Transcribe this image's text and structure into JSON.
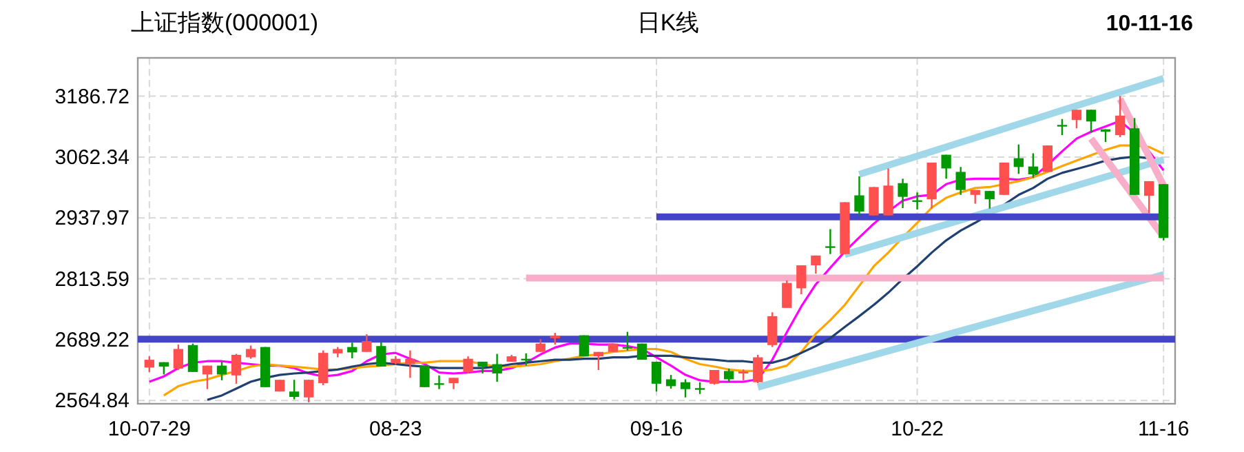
{
  "chart_data": {
    "type": "candlestick",
    "title": "上证指数(000001)",
    "subtitle": "日K线",
    "annotations": [
      "10-11-16"
    ],
    "categories": [
      "10-07-29",
      null,
      null,
      null,
      null,
      null,
      null,
      null,
      null,
      null,
      null,
      null,
      null,
      null,
      null,
      null,
      null,
      "08-23",
      null,
      null,
      null,
      null,
      null,
      null,
      null,
      null,
      null,
      null,
      null,
      null,
      null,
      null,
      null,
      null,
      null,
      "09-16",
      null,
      null,
      null,
      null,
      null,
      null,
      null,
      null,
      null,
      null,
      null,
      null,
      null,
      null,
      null,
      null,
      null,
      "10-22",
      null,
      null,
      null,
      null,
      null,
      null,
      null,
      null,
      null,
      null,
      null,
      null,
      null,
      null,
      null,
      null,
      "11-16"
    ],
    "ohlc": [
      [
        2632,
        2655,
        2623,
        2648
      ],
      [
        2643,
        2643,
        2618,
        2634
      ],
      [
        2630,
        2679,
        2627,
        2670
      ],
      [
        2678,
        2681,
        2623,
        2623
      ],
      [
        2618,
        2636,
        2588,
        2636
      ],
      [
        2636,
        2644,
        2606,
        2618
      ],
      [
        2616,
        2660,
        2599,
        2658
      ],
      [
        2653,
        2677,
        2650,
        2670
      ],
      [
        2674,
        2674,
        2592,
        2592
      ],
      [
        2583,
        2607,
        2583,
        2607
      ],
      [
        2583,
        2607,
        2567,
        2572
      ],
      [
        2571,
        2607,
        2561,
        2607
      ],
      [
        2600,
        2667,
        2596,
        2662
      ],
      [
        2661,
        2674,
        2653,
        2670
      ],
      [
        2674,
        2683,
        2651,
        2663
      ],
      [
        2664,
        2700,
        2664,
        2686
      ],
      [
        2676,
        2684,
        2634,
        2634
      ],
      [
        2641,
        2655,
        2638,
        2650
      ],
      [
        2639,
        2667,
        2611,
        2650
      ],
      [
        2636,
        2636,
        2592,
        2592
      ],
      [
        2600,
        2616,
        2588,
        2599
      ],
      [
        2600,
        2611,
        2588,
        2611
      ],
      [
        2623,
        2655,
        2620,
        2650
      ],
      [
        2644,
        2644,
        2620,
        2634
      ],
      [
        2639,
        2660,
        2603,
        2620
      ],
      [
        2644,
        2658,
        2644,
        2655
      ],
      [
        2650,
        2661,
        2636,
        2649
      ],
      [
        2664,
        2690,
        2664,
        2681
      ],
      [
        2692,
        2703,
        2679,
        2697
      ],
      null,
      [
        2698,
        2698,
        2655,
        2655
      ],
      [
        2655,
        2664,
        2627,
        2664
      ],
      [
        2664,
        2681,
        2664,
        2681
      ],
      [
        2674,
        2705,
        2667,
        2673
      ],
      [
        2681,
        2681,
        2648,
        2648
      ],
      [
        2644,
        2644,
        2583,
        2599
      ],
      [
        2608,
        2617,
        2589,
        2594
      ],
      [
        2602,
        2608,
        2571,
        2588
      ],
      [
        2590,
        2602,
        2578,
        2589
      ],
      [
        2599,
        2627,
        2597,
        2627
      ],
      [
        2625,
        2630,
        2603,
        2608
      ],
      [
        2620,
        2628,
        2606,
        2624
      ],
      [
        2602,
        2658,
        2600,
        2653
      ],
      [
        2678,
        2745,
        2674,
        2737
      ],
      [
        2754,
        2810,
        2754,
        2805
      ],
      [
        2794,
        2841,
        2782,
        2841
      ],
      [
        2841,
        2861,
        2824,
        2861
      ],
      [
        2880,
        2915,
        2864,
        2878
      ],
      [
        2864,
        2970,
        2864,
        2970
      ],
      [
        2984,
        3023,
        2943,
        2951
      ],
      [
        2943,
        3001,
        2943,
        3001
      ],
      [
        2943,
        3039,
        2943,
        3004
      ],
      [
        3009,
        3018,
        2958,
        2981
      ],
      [
        2974,
        2990,
        2955,
        2973
      ],
      [
        2976,
        3051,
        2957,
        3051
      ],
      [
        3067,
        3067,
        3018,
        3039
      ],
      [
        3032,
        3042,
        2985,
        2995
      ],
      [
        2985,
        2995,
        2967,
        2995
      ],
      [
        2993,
        2993,
        2957,
        2976
      ],
      [
        2985,
        3051,
        2985,
        3051
      ],
      [
        3060,
        3088,
        3028,
        3042
      ],
      [
        3043,
        3070,
        3020,
        3027
      ],
      [
        3032,
        3086,
        3032,
        3086
      ],
      [
        3128,
        3140,
        3107,
        3127
      ],
      [
        3138,
        3159,
        3121,
        3159
      ],
      [
        3159,
        3159,
        3112,
        3135
      ],
      [
        3119,
        3119,
        3093,
        3114
      ],
      [
        3107,
        3187,
        3103,
        3147
      ],
      [
        3121,
        3142,
        2985,
        2985
      ],
      [
        2983,
        3013,
        2948,
        3013
      ],
      [
        3007,
        3007,
        2892,
        2897
      ]
    ],
    "colors": [
      "#ff4f4f",
      "#009900",
      "#ff4f4f",
      "#009900",
      "#ff4f4f",
      "#009900",
      "#ff4f4f",
      "#ff4f4f",
      "#009900",
      "#ff4f4f",
      "#009900",
      "#ff4f4f",
      "#ff4f4f",
      "#ff4f4f",
      "#009900",
      "#ff4f4f",
      "#009900",
      "#ff4f4f",
      "#ff4f4f",
      "#009900",
      "#009900",
      "#ff4f4f",
      "#ff4f4f",
      "#009900",
      "#009900",
      "#ff4f4f",
      "#009900",
      "#ff4f4f",
      "#ff4f4f",
      null,
      "#009900",
      "#ff4f4f",
      "#ff4f4f",
      "#009900",
      "#009900",
      "#009900",
      "#009900",
      "#009900",
      "#009900",
      "#ff4f4f",
      "#009900",
      "#ff4f4f",
      "#ff4f4f",
      "#ff4f4f",
      "#ff4f4f",
      "#ff4f4f",
      "#ff4f4f",
      "#009900",
      "#ff4f4f",
      "#009900",
      "#ff4f4f",
      "#ff4f4f",
      "#009900",
      "#009900",
      "#ff4f4f",
      "#009900",
      "#009900",
      "#ff4f4f",
      "#009900",
      "#ff4f4f",
      "#009900",
      "#009900",
      "#ff4f4f",
      "#009900",
      "#ff4f4f",
      "#009900",
      "#009900",
      "#ff4f4f",
      "#009900",
      "#ff4f4f",
      "#009900"
    ],
    "series": [
      {
        "type": "line",
        "color": "#ff00ff",
        "values": [
          2603,
          2614,
          2631,
          2642,
          2645,
          2645,
          2642,
          2639,
          2636,
          2636,
          2631,
          2620,
          2614,
          2617,
          2625,
          2645,
          2659,
          2662,
          2650,
          2639,
          2622,
          2620,
          2622,
          2625,
          2625,
          2631,
          2642,
          2659,
          2673,
          2681,
          2681,
          2679,
          2679,
          2676,
          2670,
          2653,
          2636,
          2617,
          2606,
          2603,
          2603,
          2603,
          2608,
          2648,
          2704,
          2757,
          2802,
          2836,
          2869,
          2898,
          2926,
          2951,
          2973,
          2982,
          2985,
          3007,
          3016,
          3018,
          3018,
          3018,
          3016,
          3021,
          3046,
          3074,
          3100,
          3114,
          3125,
          3136,
          3111,
          3074,
          3035
        ]
      },
      {
        "type": "line",
        "color": "#ffa500",
        "values": [
          null,
          2575,
          2594,
          2603,
          2608,
          2617,
          2625,
          2634,
          2639,
          2636,
          2634,
          2631,
          2628,
          2628,
          2631,
          2634,
          2636,
          2639,
          2642,
          2642,
          2645,
          2645,
          2645,
          2639,
          2634,
          2634,
          2636,
          2639,
          2645,
          2650,
          2656,
          2659,
          2664,
          2667,
          2670,
          2670,
          2664,
          2650,
          2639,
          2634,
          2628,
          2625,
          2625,
          2628,
          2636,
          2664,
          2701,
          2729,
          2760,
          2799,
          2839,
          2867,
          2898,
          2928,
          2959,
          2979,
          2990,
          2999,
          3001,
          3007,
          3013,
          3021,
          3032,
          3044,
          3055,
          3066,
          3077,
          3086,
          3086,
          3083,
          3069
        ]
      },
      {
        "type": "line",
        "color": "#1f4070",
        "values": [
          null,
          null,
          null,
          null,
          2566,
          2575,
          2589,
          2603,
          2611,
          2617,
          2620,
          2622,
          2625,
          2628,
          2634,
          2639,
          2642,
          2639,
          2636,
          2634,
          2631,
          2631,
          2631,
          2631,
          2634,
          2639,
          2642,
          2645,
          2648,
          2648,
          2650,
          2650,
          2653,
          2653,
          2656,
          2656,
          2656,
          2653,
          2650,
          2648,
          2645,
          2645,
          2642,
          2642,
          2650,
          2662,
          2676,
          2692,
          2715,
          2737,
          2760,
          2785,
          2813,
          2839,
          2867,
          2892,
          2912,
          2928,
          2945,
          2965,
          2985,
          2999,
          3018,
          3030,
          3038,
          3046,
          3055,
          3060,
          3063,
          3060,
          null
        ]
      },
      {
        "type": "line",
        "color": "#a0d8ea",
        "values": [
          null,
          null,
          null,
          null,
          null,
          null,
          null,
          null,
          null,
          null,
          null,
          null,
          null,
          null,
          null,
          null,
          null,
          null,
          null,
          null,
          null,
          null,
          null,
          null,
          null,
          null,
          null,
          null,
          null,
          null,
          null,
          null,
          null,
          null,
          null,
          null,
          null,
          null,
          null,
          null,
          null,
          null,
          null,
          null,
          null,
          null,
          null,
          null,
          null,
          3027,
          null,
          null,
          null,
          null,
          null,
          null,
          null,
          null,
          null,
          null,
          null,
          null,
          null,
          null,
          null,
          null,
          null,
          null,
          null,
          null,
          3223
        ]
      },
      {
        "type": "line",
        "color": "#a0d8ea",
        "values": [
          null,
          null,
          null,
          null,
          null,
          null,
          null,
          null,
          null,
          null,
          null,
          null,
          null,
          null,
          null,
          null,
          null,
          null,
          null,
          null,
          null,
          null,
          null,
          null,
          null,
          null,
          null,
          null,
          null,
          null,
          null,
          null,
          null,
          null,
          null,
          null,
          null,
          null,
          null,
          null,
          null,
          null,
          null,
          null,
          null,
          null,
          null,
          null,
          2863,
          null,
          null,
          null,
          null,
          null,
          null,
          null,
          null,
          null,
          null,
          null,
          null,
          null,
          null,
          null,
          null,
          null,
          null,
          null,
          null,
          null,
          3057
        ]
      },
      {
        "type": "line",
        "color": "#a0d8ea",
        "values": [
          null,
          null,
          null,
          null,
          null,
          null,
          null,
          null,
          null,
          null,
          null,
          null,
          null,
          null,
          null,
          null,
          null,
          null,
          null,
          null,
          null,
          null,
          null,
          null,
          null,
          null,
          null,
          null,
          null,
          null,
          null,
          null,
          null,
          null,
          null,
          null,
          null,
          null,
          null,
          null,
          null,
          null,
          2592,
          null,
          null,
          null,
          null,
          null,
          null,
          null,
          null,
          null,
          null,
          null,
          null,
          null,
          null,
          null,
          null,
          null,
          null,
          null,
          null,
          null,
          null,
          null,
          null,
          null,
          null,
          null,
          2822
        ]
      },
      {
        "type": "line",
        "color": "#f8aec8",
        "values": [
          null,
          null,
          null,
          null,
          null,
          null,
          null,
          null,
          null,
          null,
          null,
          null,
          null,
          null,
          null,
          null,
          null,
          null,
          null,
          null,
          null,
          null,
          null,
          null,
          null,
          null,
          null,
          null,
          null,
          null,
          null,
          null,
          null,
          null,
          null,
          null,
          null,
          null,
          null,
          null,
          null,
          null,
          null,
          null,
          null,
          null,
          null,
          null,
          null,
          null,
          null,
          null,
          null,
          null,
          null,
          null,
          null,
          null,
          null,
          null,
          null,
          null,
          null,
          null,
          null,
          null,
          null,
          3181,
          null,
          null,
          3004
        ]
      },
      {
        "type": "line",
        "color": "#f8aec8",
        "values": [
          null,
          null,
          null,
          null,
          null,
          null,
          null,
          null,
          null,
          null,
          null,
          null,
          null,
          null,
          null,
          null,
          null,
          null,
          null,
          null,
          null,
          null,
          null,
          null,
          null,
          null,
          null,
          null,
          null,
          null,
          null,
          null,
          null,
          null,
          null,
          null,
          null,
          null,
          null,
          null,
          null,
          null,
          null,
          null,
          null,
          null,
          null,
          null,
          null,
          null,
          null,
          null,
          null,
          null,
          null,
          null,
          null,
          null,
          null,
          null,
          null,
          null,
          null,
          null,
          null,
          3100,
          null,
          null,
          null,
          null,
          2899
        ]
      },
      {
        "type": "line",
        "color": "#4444c8",
        "values": [
          null,
          null,
          null,
          null,
          null,
          null,
          null,
          null,
          null,
          null,
          null,
          null,
          null,
          null,
          null,
          null,
          null,
          null,
          null,
          null,
          null,
          null,
          null,
          null,
          null,
          null,
          null,
          null,
          null,
          null,
          null,
          null,
          null,
          null,
          null,
          2940,
          null,
          null,
          null,
          null,
          null,
          null,
          null,
          null,
          null,
          null,
          null,
          null,
          null,
          null,
          null,
          null,
          null,
          null,
          null,
          null,
          null,
          null,
          null,
          null,
          null,
          null,
          null,
          null,
          null,
          null,
          null,
          null,
          null,
          null,
          2940
        ]
      },
      {
        "type": "line",
        "color": "#f8aec8",
        "values": [
          null,
          null,
          null,
          null,
          null,
          null,
          null,
          null,
          null,
          null,
          null,
          null,
          null,
          null,
          null,
          null,
          null,
          null,
          null,
          null,
          null,
          null,
          null,
          null,
          null,
          null,
          2815,
          null,
          null,
          null,
          null,
          null,
          null,
          null,
          null,
          null,
          null,
          null,
          null,
          null,
          null,
          null,
          null,
          null,
          null,
          null,
          null,
          null,
          null,
          null,
          null,
          null,
          null,
          null,
          null,
          null,
          null,
          null,
          null,
          null,
          null,
          null,
          null,
          null,
          null,
          null,
          null,
          null,
          null,
          null,
          2815
        ]
      }
    ],
    "ref_lines": [
      {
        "axis": "y",
        "value": 2690,
        "color": "#4444c8"
      }
    ],
    "ylim": [
      2558,
      3265
    ],
    "yticks": [
      2564.84,
      2689.22,
      2813.59,
      2937.97,
      3062.34,
      3186.72
    ],
    "grid": true
  }
}
